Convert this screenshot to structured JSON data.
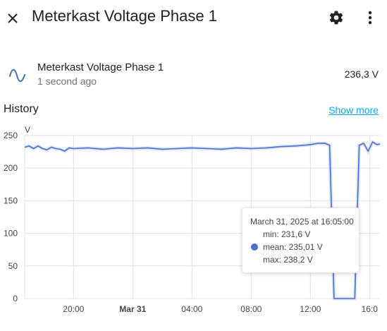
{
  "dialog": {
    "title": "Meterkast Voltage Phase 1",
    "close_icon": "close-icon",
    "settings_icon": "gear-icon",
    "more_icon": "more-vertical-icon"
  },
  "entity": {
    "icon": "sine-wave-icon",
    "name": "Meterkast Voltage Phase 1",
    "last_updated": "1 second ago",
    "state": "236,3 V"
  },
  "history": {
    "title": "History",
    "show_more": "Show more"
  },
  "colors": {
    "line": "#4a6fd0",
    "band": "#c5d2f1",
    "link": "#03a9f4"
  },
  "chart_data": {
    "type": "line",
    "ylabel": "V",
    "ylim": [
      0,
      250
    ],
    "y_ticks": [
      0,
      50,
      100,
      150,
      200,
      250
    ],
    "x_ticks": [
      "20:00",
      "Mar 31",
      "04:00",
      "08:00",
      "12:00",
      "16:0"
    ],
    "x_tick_hours": [
      20,
      24,
      28,
      32,
      36,
      40
    ],
    "x_range_hours": [
      16.7,
      40.7
    ],
    "grid": true,
    "series": [
      {
        "values": [
          [
            16.7,
            232
          ],
          [
            17.0,
            234
          ],
          [
            17.3,
            230
          ],
          [
            17.6,
            234
          ],
          [
            17.9,
            230
          ],
          [
            18.2,
            228
          ],
          [
            18.5,
            232
          ],
          [
            18.8,
            230
          ],
          [
            19.1,
            229
          ],
          [
            19.4,
            226
          ],
          [
            19.7,
            231
          ],
          [
            20.0,
            230
          ],
          [
            21.0,
            231
          ],
          [
            22.0,
            229
          ],
          [
            23.0,
            231
          ],
          [
            24.0,
            230
          ],
          [
            25.0,
            231
          ],
          [
            26.0,
            229
          ],
          [
            27.0,
            230
          ],
          [
            28.0,
            231
          ],
          [
            29.0,
            230
          ],
          [
            30.0,
            229
          ],
          [
            31.0,
            231
          ],
          [
            32.0,
            230
          ],
          [
            33.0,
            231
          ],
          [
            34.0,
            233
          ],
          [
            35.0,
            234
          ],
          [
            35.5,
            235
          ],
          [
            36.0,
            236
          ],
          [
            36.5,
            238
          ],
          [
            37.0,
            238
          ],
          [
            37.3,
            235
          ],
          [
            37.6,
            0
          ],
          [
            39.0,
            0
          ],
          [
            39.3,
            235
          ],
          [
            39.6,
            238
          ],
          [
            39.9,
            226
          ],
          [
            40.2,
            240
          ],
          [
            40.5,
            236
          ],
          [
            40.7,
            237
          ]
        ]
      }
    ],
    "tooltip": {
      "time": "March 31, 2025 at 16:05:00",
      "min": "min: 231,6 V",
      "mean": "mean: 235,01 V",
      "max": "max: 238,2 V"
    }
  }
}
